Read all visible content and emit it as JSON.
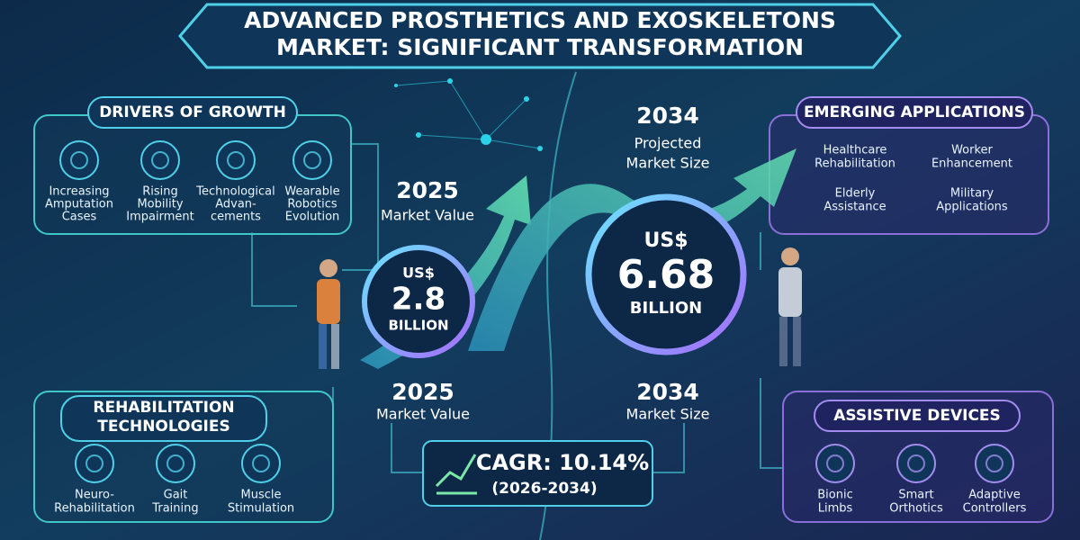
{
  "header": {
    "title_lines": [
      "ADVANCED PROSTHETICS AND EXOSKELETONS",
      "MARKET: SIGNIFICANT TRANSFORMATION"
    ]
  },
  "drivers": {
    "heading": "DRIVERS OF GROWTH",
    "items": [
      {
        "lines": [
          "Increasing",
          "Amputation",
          "Cases"
        ]
      },
      {
        "lines": [
          "Rising",
          "Mobility",
          "Impairment"
        ]
      },
      {
        "lines": [
          "Technological",
          "Advan-",
          "cements"
        ]
      },
      {
        "lines": [
          "Wearable",
          "Robotics",
          "Evolution"
        ]
      }
    ]
  },
  "market_2025": {
    "year": "2025",
    "label": "Market Value",
    "currency": "US$",
    "amount": "2.8",
    "unit": "BILLION"
  },
  "market_2034": {
    "year": "2034",
    "label_lines": [
      "Projected",
      "Market Size"
    ],
    "currency": "US$",
    "amount": "6.68",
    "unit": "BILLION"
  },
  "lower_labels": {
    "left": {
      "year": "2025",
      "label": "Market Value"
    },
    "right": {
      "year": "2034",
      "label": "Market Size"
    }
  },
  "cagr": {
    "value": "CAGR: 10.14%",
    "period": "(2026-2034)"
  },
  "emerging": {
    "heading": "EMERGING APPLICATIONS",
    "items": [
      {
        "lines": [
          "Healthcare",
          "Rehabilitation"
        ]
      },
      {
        "lines": [
          "Worker",
          "Enhancement"
        ]
      },
      {
        "lines": [
          "Elderly",
          "Assistance"
        ]
      },
      {
        "lines": [
          "Military",
          "Applications"
        ]
      }
    ]
  },
  "rehab": {
    "heading_lines": [
      "REHABILITATION",
      "TECHNOLOGIES"
    ],
    "items": [
      {
        "lines": [
          "Neuro-",
          "Rehabilitation"
        ]
      },
      {
        "lines": [
          "Gait",
          "Training"
        ]
      },
      {
        "lines": [
          "Muscle",
          "Stimulation"
        ]
      }
    ]
  },
  "assistive": {
    "heading": "ASSISTIVE DEVICES",
    "items": [
      {
        "lines": [
          "Bionic",
          "Limbs"
        ]
      },
      {
        "lines": [
          "Smart",
          "Orthotics"
        ]
      },
      {
        "lines": [
          "Adaptive",
          "Controllers"
        ]
      }
    ]
  }
}
